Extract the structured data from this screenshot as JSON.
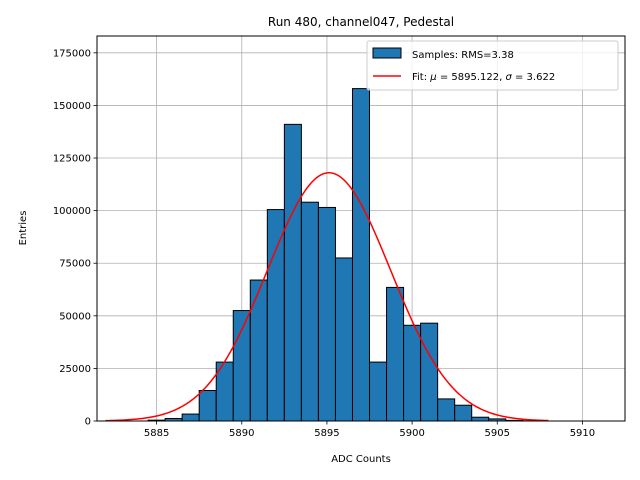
{
  "chart_data": {
    "type": "bar",
    "title": "Run 480, channel047, Pedestal",
    "xlabel": "ADC Counts",
    "ylabel": "Entries",
    "xlim": [
      5881.5,
      5912.5
    ],
    "ylim": [
      0,
      183000
    ],
    "x_ticks": [
      5885,
      5890,
      5895,
      5900,
      5905,
      5910
    ],
    "y_ticks": [
      0,
      25000,
      50000,
      75000,
      100000,
      125000,
      150000,
      175000
    ],
    "grid": true,
    "legend_position": "top-right",
    "bin_width": 1,
    "bins": [
      5885,
      5886,
      5887,
      5888,
      5889,
      5890,
      5891,
      5892,
      5893,
      5894,
      5895,
      5896,
      5897,
      5898,
      5899,
      5900,
      5901,
      5902,
      5903,
      5904,
      5905,
      5906,
      5907
    ],
    "counts": [
      400,
      1200,
      3300,
      14500,
      28000,
      52500,
      67000,
      100500,
      141000,
      104000,
      101500,
      77500,
      158000,
      28000,
      63500,
      45500,
      46500,
      10500,
      7500,
      1800,
      1000,
      300,
      100
    ],
    "series": [
      {
        "name": "Samples: RMS=3.38",
        "type": "histogram",
        "color": "#1f77b4"
      },
      {
        "name_prefix": "Fit: ",
        "name_mu": "μ",
        "name_mid": " = 5895.122, ",
        "name_sigma": "σ",
        "name_suffix": " = 3.622",
        "type": "gaussian",
        "color": "#ff0000",
        "mu": 5895.122,
        "sigma": 3.622,
        "amplitude": 118000,
        "x_range": [
          5882,
          5908
        ]
      }
    ]
  }
}
